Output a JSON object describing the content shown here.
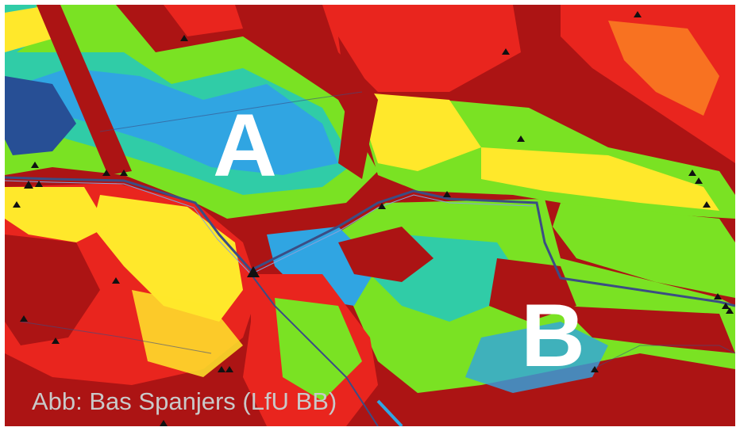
{
  "image": {
    "description_type": "false-color aerial map (moisture/vegetation index)",
    "palette": {
      "very_dry": "#a50000",
      "dry": "#e8120a",
      "medium_dry": "#ff8a10",
      "medium": "#ffe619",
      "medium_wet": "#6fe010",
      "wet": "#1ec8a0",
      "very_wet": "#1e9ee0",
      "wettest": "#14408c"
    },
    "marker_color": "#111111",
    "channel_color": "#2a3e7a"
  },
  "labels": {
    "area_a": "A",
    "area_b": "B",
    "credit": "Abb: Bas Spanjers (LfU BB)"
  },
  "colors": {
    "label_text": "#ffffff",
    "credit_text": "#c9c9c9"
  }
}
